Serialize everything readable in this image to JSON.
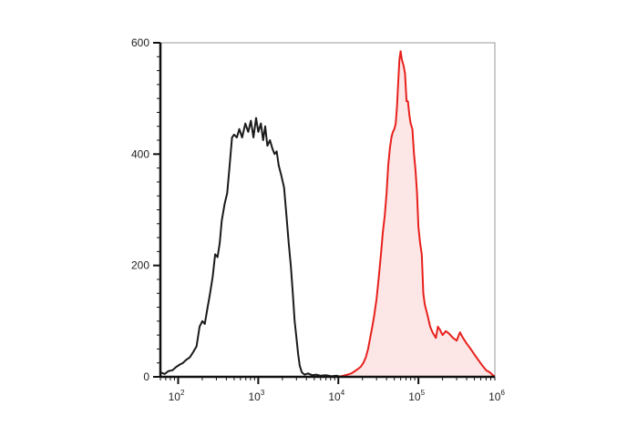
{
  "chart_data": {
    "type": "area",
    "title": "",
    "xlabel": "",
    "ylabel": "",
    "x_scale": "log",
    "xlim": [
      60,
      900000
    ],
    "ylim": [
      0,
      600
    ],
    "grid": false,
    "legend": "none",
    "x_ticks": [
      {
        "value": 100,
        "base": "10",
        "exp": "2"
      },
      {
        "value": 1000,
        "base": "10",
        "exp": "3"
      },
      {
        "value": 10000,
        "base": "10",
        "exp": "4"
      },
      {
        "value": 100000,
        "base": "10",
        "exp": "5"
      },
      {
        "value": 1000000,
        "base": "10",
        "exp": "6"
      }
    ],
    "y_ticks": [
      {
        "value": 0,
        "label": "0"
      },
      {
        "value": 200,
        "label": "200"
      },
      {
        "value": 400,
        "label": "400"
      },
      {
        "value": 600,
        "label": "600"
      }
    ],
    "series": [
      {
        "color": "#1a1a1a",
        "filled": false,
        "points": [
          [
            60,
            8
          ],
          [
            68,
            5
          ],
          [
            75,
            10
          ],
          [
            85,
            12
          ],
          [
            95,
            18
          ],
          [
            105,
            22
          ],
          [
            115,
            25
          ],
          [
            125,
            30
          ],
          [
            140,
            35
          ],
          [
            155,
            45
          ],
          [
            170,
            55
          ],
          [
            185,
            90
          ],
          [
            200,
            100
          ],
          [
            215,
            95
          ],
          [
            230,
            120
          ],
          [
            250,
            150
          ],
          [
            270,
            180
          ],
          [
            290,
            220
          ],
          [
            310,
            215
          ],
          [
            330,
            240
          ],
          [
            350,
            280
          ],
          [
            380,
            310
          ],
          [
            410,
            330
          ],
          [
            440,
            380
          ],
          [
            470,
            430
          ],
          [
            500,
            435
          ],
          [
            540,
            430
          ],
          [
            580,
            445
          ],
          [
            630,
            430
          ],
          [
            690,
            455
          ],
          [
            750,
            440
          ],
          [
            810,
            460
          ],
          [
            870,
            430
          ],
          [
            940,
            465
          ],
          [
            1000,
            440
          ],
          [
            1080,
            455
          ],
          [
            1150,
            425
          ],
          [
            1220,
            450
          ],
          [
            1300,
            415
          ],
          [
            1400,
            425
          ],
          [
            1500,
            410
          ],
          [
            1600,
            400
          ],
          [
            1700,
            405
          ],
          [
            1800,
            380
          ],
          [
            1950,
            360
          ],
          [
            2100,
            340
          ],
          [
            2250,
            290
          ],
          [
            2400,
            240
          ],
          [
            2550,
            200
          ],
          [
            2700,
            150
          ],
          [
            2850,
            100
          ],
          [
            3000,
            70
          ],
          [
            3150,
            40
          ],
          [
            3300,
            20
          ],
          [
            3500,
            8
          ],
          [
            3800,
            4
          ],
          [
            4200,
            6
          ],
          [
            4700,
            3
          ],
          [
            5300,
            4
          ],
          [
            6000,
            2
          ],
          [
            7000,
            3
          ],
          [
            8200,
            1
          ],
          [
            9500,
            2
          ],
          [
            11000,
            0
          ]
        ]
      },
      {
        "color": "#e8201c",
        "fill": "#fce6e6",
        "filled": true,
        "points": [
          [
            10000,
            0
          ],
          [
            11500,
            2
          ],
          [
            13000,
            4
          ],
          [
            14500,
            6
          ],
          [
            16000,
            10
          ],
          [
            17500,
            14
          ],
          [
            19000,
            18
          ],
          [
            20500,
            25
          ],
          [
            22000,
            35
          ],
          [
            23500,
            50
          ],
          [
            25000,
            70
          ],
          [
            26500,
            90
          ],
          [
            28000,
            110
          ],
          [
            30000,
            140
          ],
          [
            32000,
            180
          ],
          [
            34000,
            220
          ],
          [
            36000,
            260
          ],
          [
            38000,
            290
          ],
          [
            40000,
            330
          ],
          [
            42000,
            380
          ],
          [
            44000,
            410
          ],
          [
            46000,
            430
          ],
          [
            48000,
            440
          ],
          [
            50000,
            445
          ],
          [
            52000,
            455
          ],
          [
            54000,
            485
          ],
          [
            56000,
            530
          ],
          [
            58000,
            570
          ],
          [
            60000,
            585
          ],
          [
            62000,
            570
          ],
          [
            65000,
            560
          ],
          [
            68000,
            545
          ],
          [
            71000,
            495
          ],
          [
            74000,
            495
          ],
          [
            77000,
            470
          ],
          [
            80000,
            455
          ],
          [
            84000,
            445
          ],
          [
            88000,
            400
          ],
          [
            92000,
            370
          ],
          [
            96000,
            330
          ],
          [
            100000,
            270
          ],
          [
            105000,
            240
          ],
          [
            110000,
            220
          ],
          [
            115000,
            150
          ],
          [
            120000,
            130
          ],
          [
            130000,
            110
          ],
          [
            140000,
            90
          ],
          [
            150000,
            80
          ],
          [
            165000,
            70
          ],
          [
            175000,
            90
          ],
          [
            185000,
            85
          ],
          [
            200000,
            75
          ],
          [
            220000,
            82
          ],
          [
            240000,
            78
          ],
          [
            270000,
            70
          ],
          [
            300000,
            65
          ],
          [
            330000,
            80
          ],
          [
            360000,
            70
          ],
          [
            400000,
            60
          ],
          [
            450000,
            50
          ],
          [
            500000,
            40
          ],
          [
            560000,
            30
          ],
          [
            630000,
            20
          ],
          [
            700000,
            12
          ],
          [
            780000,
            8
          ],
          [
            850000,
            3
          ],
          [
            900000,
            1
          ]
        ]
      }
    ]
  }
}
